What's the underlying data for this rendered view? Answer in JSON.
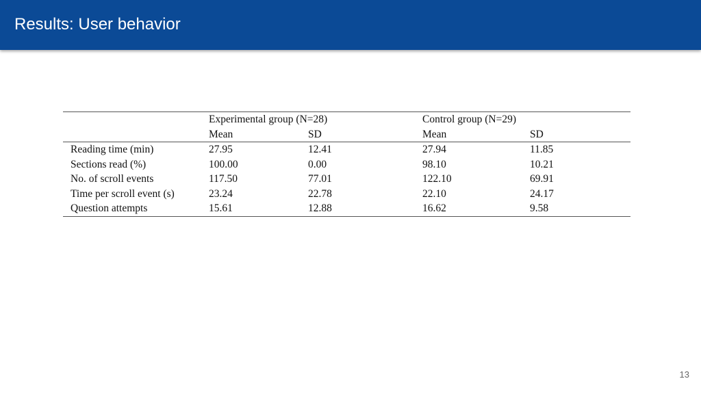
{
  "slide": {
    "title": "Results: User behavior",
    "page_number": "13"
  },
  "table": {
    "groups": [
      "Experimental group (N=28)",
      "Control group (N=29)"
    ],
    "subheaders": [
      "Mean",
      "SD",
      "Mean",
      "SD"
    ],
    "rows": [
      {
        "label": "Reading time (min)",
        "values": [
          "27.95",
          "12.41",
          "27.94",
          "11.85"
        ]
      },
      {
        "label": "Sections read (%)",
        "values": [
          "100.00",
          "0.00",
          "98.10",
          "10.21"
        ]
      },
      {
        "label": "No. of scroll events",
        "values": [
          "117.50",
          "77.01",
          "122.10",
          "69.91"
        ]
      },
      {
        "label": "Time per scroll event (s)",
        "values": [
          "23.24",
          "22.78",
          "22.10",
          "24.17"
        ]
      },
      {
        "label": "Question attempts",
        "values": [
          "15.61",
          "12.88",
          "16.62",
          "9.58"
        ]
      }
    ]
  },
  "colors": {
    "title_bar": "#0b4a96",
    "title_text": "#ffffff"
  }
}
